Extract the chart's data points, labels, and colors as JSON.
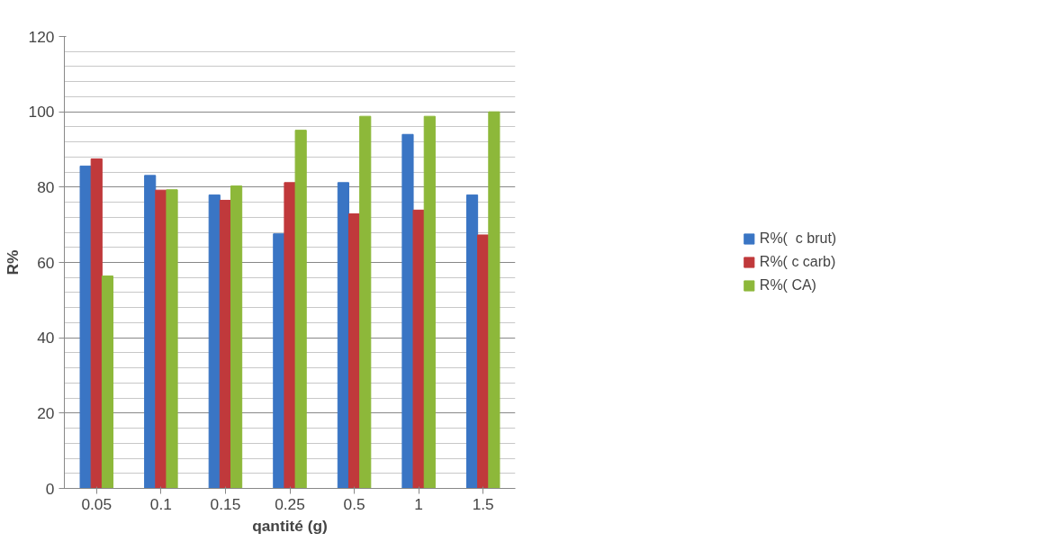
{
  "chart_data": {
    "type": "bar",
    "xlabel": "qantité (g)",
    "ylabel": "R%",
    "categories": [
      "0.05",
      "0.1",
      "0.15",
      "0.25",
      "0.5",
      "1",
      "1.5"
    ],
    "series": [
      {
        "name": "R%(  c brut)",
        "color": "#3a75c4",
        "values": [
          85.6,
          83.1,
          77.9,
          67.6,
          81.2,
          94.0,
          77.9
        ]
      },
      {
        "name": "R%( c carb)",
        "color": "#c0393b",
        "values": [
          87.5,
          79.2,
          76.5,
          81.2,
          72.9,
          73.9,
          67.3
        ]
      },
      {
        "name": "R%( CA)",
        "color": "#8db83a",
        "values": [
          56.4,
          79.3,
          80.3,
          95.1,
          98.8,
          98.8,
          100
        ]
      }
    ],
    "ylim": [
      0,
      120
    ],
    "yticks": [
      0,
      20,
      40,
      60,
      80,
      100,
      120
    ],
    "grid": "y",
    "legend": "right"
  }
}
